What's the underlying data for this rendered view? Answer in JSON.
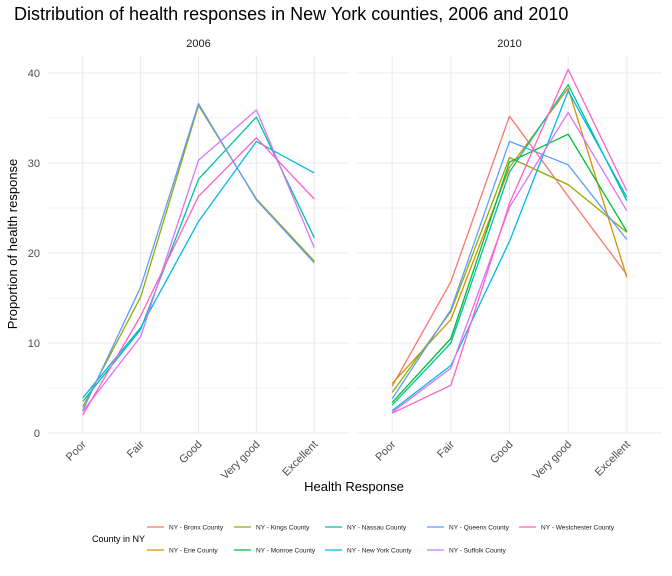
{
  "chart_data": {
    "type": "line",
    "title": "Distribution of health responses in New York counties, 2006 and 2010",
    "xlabel": "Health Response",
    "ylabel": "Proportion of health response",
    "categories": [
      "Poor",
      "Fair",
      "Good",
      "Very good",
      "Excellent"
    ],
    "ylim": [
      0,
      42
    ],
    "yticks": [
      0,
      10,
      20,
      30,
      40
    ],
    "grid": true,
    "legend_position": "bottom",
    "legend_title": "County in NY",
    "colors": {
      "NY - Bronx County": "#F8766D",
      "NY - Erie County": "#D39200",
      "NY - Kings County": "#93AA00",
      "NY - Monroe County": "#00BA38",
      "NY - Nassau County": "#00C19F",
      "NY - New York County": "#00B9E3",
      "NY - Queens County": "#619CFF",
      "NY - Suffolk County": "#DB72FB",
      "NY - Westchester County": "#FF61C3"
    },
    "panels": [
      {
        "label": "2006",
        "series": [
          {
            "name": "NY - Kings County",
            "values": [
              2.9,
              15.1,
              36.4,
              26.0,
              19.1
            ]
          },
          {
            "name": "NY - Nassau County",
            "values": [
              3.5,
              11.5,
              28.2,
              35.1,
              21.7
            ]
          },
          {
            "name": "NY - New York County",
            "values": [
              3.9,
              11.7,
              23.5,
              32.4,
              28.9
            ]
          },
          {
            "name": "NY - Queens County",
            "values": [
              2.5,
              16.2,
              36.6,
              25.9,
              18.9
            ]
          },
          {
            "name": "NY - Suffolk County",
            "values": [
              2.4,
              10.7,
              30.3,
              35.9,
              20.6
            ]
          },
          {
            "name": "NY - Westchester County",
            "values": [
              2.0,
              13.0,
              26.3,
              32.8,
              26.0
            ]
          }
        ]
      },
      {
        "label": "2010",
        "series": [
          {
            "name": "NY - Bronx County",
            "values": [
              5.2,
              16.8,
              35.2,
              26.3,
              17.6
            ]
          },
          {
            "name": "NY - Erie County",
            "values": [
              5.5,
              12.6,
              29.5,
              38.3,
              17.3
            ]
          },
          {
            "name": "NY - Kings County",
            "values": [
              4.5,
              13.5,
              30.6,
              27.6,
              22.3
            ]
          },
          {
            "name": "NY - Monroe County",
            "values": [
              3.4,
              10.5,
              30.1,
              33.2,
              22.4
            ]
          },
          {
            "name": "NY - Nassau County",
            "values": [
              3.1,
              10.0,
              29.0,
              38.7,
              25.8
            ]
          },
          {
            "name": "NY - New York County",
            "values": [
              2.5,
              7.5,
              21.3,
              38.0,
              26.2
            ]
          },
          {
            "name": "NY - Queens County",
            "values": [
              3.8,
              13.7,
              32.4,
              29.8,
              21.5
            ]
          },
          {
            "name": "NY - Suffolk County",
            "values": [
              2.3,
              7.2,
              25.1,
              35.6,
              24.7
            ]
          },
          {
            "name": "NY - Westchester County",
            "values": [
              2.2,
              5.3,
              25.5,
              40.4,
              26.9
            ]
          }
        ]
      }
    ],
    "legend": [
      "NY - Bronx County",
      "NY - Erie County",
      "NY - Kings County",
      "NY - Monroe County",
      "NY - Nassau County",
      "NY - New York County",
      "NY - Queens County",
      "NY - Suffolk County",
      "NY - Westchester County"
    ]
  }
}
